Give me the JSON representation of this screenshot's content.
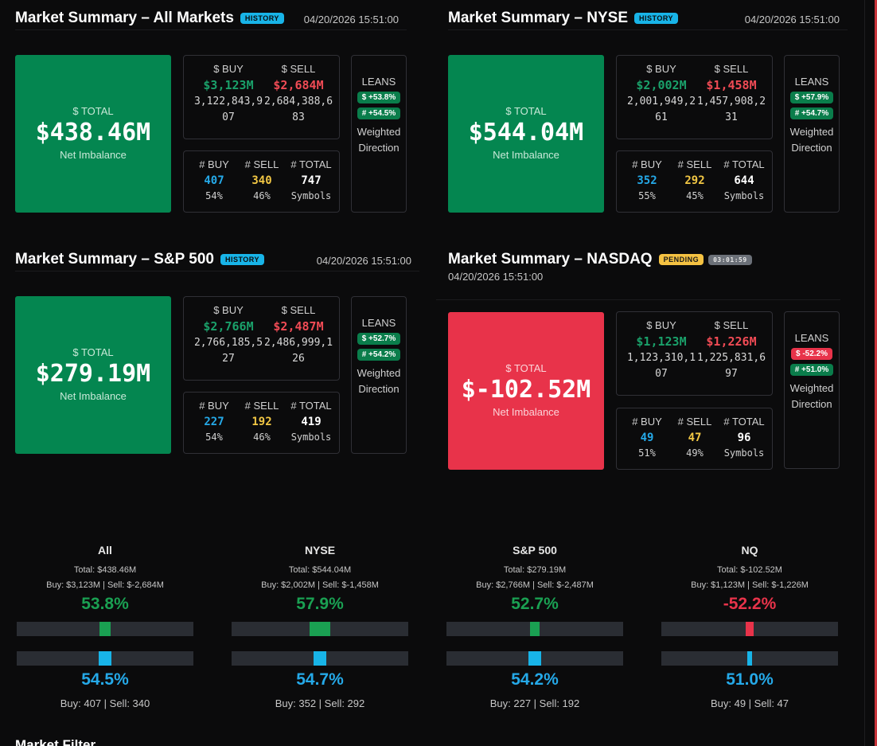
{
  "panels": {
    "all": {
      "title": "Market Summary – All Markets",
      "badge": "HISTORY",
      "time": "04/20/2026 15:51:00",
      "total_label": "$ TOTAL",
      "total_value": "$438.46M",
      "total_sub": "Net Imbalance",
      "buy_header": "$ BUY",
      "sell_header": "$ SELL",
      "buy_amt": "$3,123M",
      "sell_amt": "$2,684M",
      "buy_raw": "3,122,843,907",
      "sell_raw": "2,684,388,683",
      "cnt_buy_header": "# BUY",
      "cnt_sell_header": "# SELL",
      "cnt_total_header": "# TOTAL",
      "cnt_buy": "407",
      "cnt_sell": "340",
      "cnt_total": "747",
      "pct_buy": "54%",
      "pct_sell": "46%",
      "symbols": "Symbols",
      "leans_title": "LEANS",
      "lean_dollar": "$ +53.8%",
      "lean_count": "# +54.5%",
      "lean_note": "Weighted Direction"
    },
    "nyse": {
      "title": "Market Summary – NYSE",
      "badge": "HISTORY",
      "time": "04/20/2026 15:51:00",
      "total_label": "$ TOTAL",
      "total_value": "$544.04M",
      "total_sub": "Net Imbalance",
      "buy_header": "$ BUY",
      "sell_header": "$ SELL",
      "buy_amt": "$2,002M",
      "sell_amt": "$1,458M",
      "buy_raw": "2,001,949,261",
      "sell_raw": "1,457,908,231",
      "cnt_buy_header": "# BUY",
      "cnt_sell_header": "# SELL",
      "cnt_total_header": "# TOTAL",
      "cnt_buy": "352",
      "cnt_sell": "292",
      "cnt_total": "644",
      "pct_buy": "55%",
      "pct_sell": "45%",
      "symbols": "Symbols",
      "leans_title": "LEANS",
      "lean_dollar": "$ +57.9%",
      "lean_count": "# +54.7%",
      "lean_note": "Weighted Direction"
    },
    "sp500": {
      "title": "Market Summary – S&P 500",
      "badge": "HISTORY",
      "time": "04/20/2026 15:51:00",
      "total_label": "$ TOTAL",
      "total_value": "$279.19M",
      "total_sub": "Net Imbalance",
      "buy_header": "$ BUY",
      "sell_header": "$ SELL",
      "buy_amt": "$2,766M",
      "sell_amt": "$2,487M",
      "buy_raw": "2,766,185,527",
      "sell_raw": "2,486,999,126",
      "cnt_buy_header": "# BUY",
      "cnt_sell_header": "# SELL",
      "cnt_total_header": "# TOTAL",
      "cnt_buy": "227",
      "cnt_sell": "192",
      "cnt_total": "419",
      "pct_buy": "54%",
      "pct_sell": "46%",
      "symbols": "Symbols",
      "leans_title": "LEANS",
      "lean_dollar": "$ +52.7%",
      "lean_count": "# +54.2%",
      "lean_note": "Weighted Direction"
    },
    "nasdaq": {
      "title": "Market Summary – NASDAQ",
      "badge": "PENDING",
      "timer": "03:01:59",
      "time": "04/20/2026 15:51:00",
      "total_label": "$ TOTAL",
      "total_value": "$-102.52M",
      "total_sub": "Net Imbalance",
      "buy_header": "$ BUY",
      "sell_header": "$ SELL",
      "buy_amt": "$1,123M",
      "sell_amt": "$1,226M",
      "buy_raw": "1,123,310,107",
      "sell_raw": "1,225,831,697",
      "cnt_buy_header": "# BUY",
      "cnt_sell_header": "# SELL",
      "cnt_total_header": "# TOTAL",
      "cnt_buy": "49",
      "cnt_sell": "47",
      "cnt_total": "96",
      "pct_buy": "51%",
      "pct_sell": "49%",
      "symbols": "Symbols",
      "leans_title": "LEANS",
      "lean_dollar": "$ -52.2%",
      "lean_count": "# +51.0%",
      "lean_note": "Weighted Direction"
    }
  },
  "gauges": {
    "all": {
      "title": "All",
      "total": "Total: $438.46M",
      "buysell": "Buy: $3,123M | Sell: $-2,684M",
      "dollar_pct": "53.8%",
      "dollar_lean": 0.538,
      "count_pct": "54.5%",
      "count_lean": 0.545,
      "counts": "Buy: 407 | Sell: 340"
    },
    "nyse": {
      "title": "NYSE",
      "total": "Total: $544.04M",
      "buysell": "Buy: $2,002M | Sell: $-1,458M",
      "dollar_pct": "57.9%",
      "dollar_lean": 0.579,
      "count_pct": "54.7%",
      "count_lean": 0.547,
      "counts": "Buy: 352 | Sell: 292"
    },
    "sp500": {
      "title": "S&P 500",
      "total": "Total: $279.19M",
      "buysell": "Buy: $2,766M | Sell: $-2,487M",
      "dollar_pct": "52.7%",
      "dollar_lean": 0.527,
      "count_pct": "54.2%",
      "count_lean": 0.542,
      "counts": "Buy: 227 | Sell: 192"
    },
    "nq": {
      "title": "NQ",
      "total": "Total: $-102.52M",
      "buysell": "Buy: $1,123M | Sell: $-1,226M",
      "dollar_pct": "-52.2%",
      "dollar_lean": -0.522,
      "count_pct": "51.0%",
      "count_lean": 0.51,
      "counts": "Buy: 49 | Sell: 47"
    }
  },
  "colors": {
    "positive": "#1aa052",
    "negative": "#e8334a",
    "count_bar": "#18b4e8",
    "accent_edge": "#c8353b"
  },
  "footer": {
    "section_title": "Market Filter"
  }
}
